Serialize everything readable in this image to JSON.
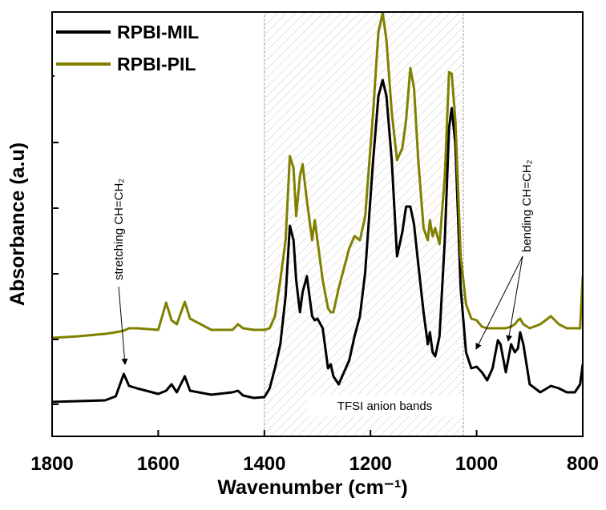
{
  "chart_data": {
    "type": "line",
    "x_label": "Wavenumber (cm⁻¹)",
    "y_label": "Absorbance (a.u)",
    "xlim": [
      1800,
      800
    ],
    "xticks": [
      1800,
      1600,
      1400,
      1200,
      1000,
      800
    ],
    "ylim": [
      0,
      530
    ],
    "legend": "top-left",
    "shaded_region": [
      1400,
      1025
    ],
    "annotations": [
      "stretching CH=CH₂",
      "bending CH=CH₂",
      "TFSI anion bands"
    ],
    "x": [
      1800,
      1750,
      1700,
      1680,
      1665,
      1655,
      1640,
      1600,
      1585,
      1575,
      1565,
      1550,
      1540,
      1500,
      1460,
      1450,
      1440,
      1420,
      1400,
      1390,
      1380,
      1370,
      1360,
      1352,
      1345,
      1340,
      1333,
      1328,
      1320,
      1310,
      1305,
      1300,
      1290,
      1280,
      1275,
      1270,
      1260,
      1240,
      1230,
      1220,
      1210,
      1195,
      1185,
      1177,
      1170,
      1160,
      1150,
      1140,
      1133,
      1125,
      1118,
      1110,
      1100,
      1092,
      1088,
      1083,
      1078,
      1070,
      1060,
      1052,
      1047,
      1040,
      1030,
      1020,
      1010,
      1000,
      990,
      980,
      970,
      960,
      955,
      945,
      935,
      928,
      922,
      918,
      912,
      900,
      880,
      860,
      845,
      830,
      815,
      805,
      800
    ],
    "series": [
      {
        "name": "RPBI-MIL",
        "color": "#000000",
        "values": [
          43,
          44,
          45,
          50,
          78,
          63,
          60,
          53,
          57,
          65,
          55,
          75,
          57,
          52,
          55,
          57,
          51,
          48,
          49,
          60,
          85,
          115,
          175,
          263,
          245,
          195,
          155,
          180,
          200,
          150,
          145,
          147,
          135,
          85,
          90,
          75,
          65,
          95,
          125,
          150,
          205,
          345,
          425,
          445,
          425,
          345,
          225,
          255,
          287,
          287,
          265,
          215,
          155,
          115,
          130,
          105,
          100,
          125,
          245,
          385,
          410,
          365,
          185,
          105,
          85,
          87,
          80,
          70,
          85,
          120,
          115,
          80,
          115,
          105,
          110,
          130,
          115,
          65,
          55,
          63,
          60,
          55,
          55,
          65,
          90
        ]
      },
      {
        "name": "RPBI-PIL",
        "color": "#808000",
        "values": [
          123,
          125,
          128,
          130,
          132,
          135,
          135,
          133,
          167,
          145,
          140,
          168,
          147,
          133,
          133,
          140,
          135,
          133,
          133,
          135,
          150,
          195,
          245,
          350,
          335,
          275,
          325,
          340,
          295,
          245,
          270,
          245,
          195,
          160,
          155,
          155,
          185,
          235,
          250,
          245,
          275,
          405,
          505,
          529,
          495,
          405,
          345,
          360,
          395,
          460,
          435,
          345,
          260,
          245,
          270,
          250,
          260,
          240,
          325,
          455,
          453,
          395,
          225,
          165,
          147,
          145,
          137,
          135,
          135,
          135,
          135,
          135,
          137,
          140,
          145,
          147,
          140,
          135,
          140,
          150,
          140,
          135,
          135,
          135,
          200
        ]
      }
    ]
  }
}
